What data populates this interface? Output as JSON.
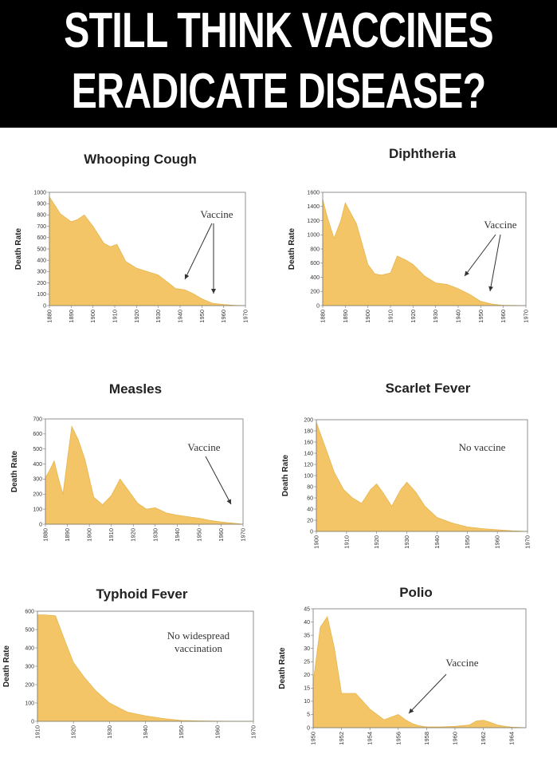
{
  "banner": {
    "line1": "STILL THINK VACCINES",
    "line2": "ERADICATE DISEASE?"
  },
  "colors": {
    "fill": "#F3C566",
    "stroke": "#E6B54E",
    "banner_bg": "#000000",
    "banner_text": "#FFFFFF"
  },
  "chart_data": [
    {
      "type": "area",
      "title": "Whooping Cough",
      "ylabel": "Death Rate",
      "ylim": [
        0,
        1000
      ],
      "yticks": [
        0,
        100,
        200,
        300,
        400,
        500,
        600,
        700,
        800,
        900,
        1000
      ],
      "xlim": [
        1880,
        1970
      ],
      "xticks": [
        "1880",
        "1890",
        "1900",
        "1910",
        "1920",
        "1930",
        "1940",
        "1950",
        "1960",
        "1970"
      ],
      "x": [
        1880,
        1885,
        1890,
        1893,
        1896,
        1900,
        1905,
        1908,
        1911,
        1915,
        1920,
        1925,
        1930,
        1934,
        1938,
        1942,
        1946,
        1950,
        1955,
        1960,
        1965,
        1970
      ],
      "y": [
        960,
        810,
        740,
        760,
        800,
        700,
        550,
        520,
        540,
        390,
        330,
        300,
        270,
        210,
        150,
        140,
        105,
        60,
        20,
        10,
        3,
        0
      ],
      "annotation": "Vaccine"
    },
    {
      "type": "area",
      "title": "Diphtheria",
      "ylabel": "Death Rate",
      "ylim": [
        0,
        1600
      ],
      "yticks": [
        0,
        200,
        400,
        600,
        800,
        1000,
        1200,
        1400,
        1600
      ],
      "xlim": [
        1880,
        1970
      ],
      "xticks": [
        "1880",
        "1890",
        "1900",
        "1910",
        "1920",
        "1930",
        "1940",
        "1950",
        "1960",
        "1970"
      ],
      "x": [
        1880,
        1882,
        1885,
        1888,
        1890,
        1895,
        1900,
        1903,
        1906,
        1910,
        1913,
        1917,
        1920,
        1925,
        1930,
        1935,
        1940,
        1945,
        1950,
        1955,
        1960,
        1965,
        1970
      ],
      "y": [
        1500,
        1250,
        950,
        1200,
        1450,
        1150,
        580,
        450,
        430,
        460,
        700,
        640,
        580,
        420,
        320,
        300,
        240,
        160,
        60,
        20,
        5,
        2,
        0
      ],
      "annotation": "Vaccine"
    },
    {
      "type": "area",
      "title": "Measles",
      "ylabel": "Death Rate",
      "ylim": [
        0,
        700
      ],
      "yticks": [
        0,
        100,
        200,
        300,
        400,
        500,
        600,
        700
      ],
      "xlim": [
        1880,
        1970
      ],
      "xticks": [
        "1880",
        "1890",
        "1900",
        "1910",
        "1920",
        "1930",
        "1940",
        "1950",
        "1960",
        "1970"
      ],
      "x": [
        1880,
        1882,
        1884,
        1886,
        1888,
        1890,
        1892,
        1895,
        1898,
        1902,
        1906,
        1910,
        1914,
        1918,
        1922,
        1926,
        1930,
        1935,
        1940,
        1945,
        1950,
        1955,
        1960,
        1965,
        1970
      ],
      "y": [
        310,
        360,
        420,
        300,
        200,
        430,
        650,
        560,
        430,
        180,
        130,
        190,
        300,
        220,
        140,
        100,
        110,
        75,
        60,
        50,
        40,
        25,
        15,
        8,
        0
      ],
      "annotation": "Vaccine"
    },
    {
      "type": "area",
      "title": "Scarlet Fever",
      "ylabel": "Death Rate",
      "ylim": [
        0,
        200
      ],
      "yticks": [
        0,
        20,
        40,
        60,
        80,
        100,
        120,
        140,
        160,
        180,
        200
      ],
      "xlim": [
        1900,
        1970
      ],
      "xticks": [
        "1900",
        "1910",
        "1920",
        "1930",
        "1940",
        "1950",
        "1960",
        "1970"
      ],
      "x": [
        1900,
        1903,
        1906,
        1909,
        1912,
        1915,
        1918,
        1920,
        1922,
        1925,
        1928,
        1930,
        1933,
        1936,
        1940,
        1945,
        1950,
        1955,
        1960,
        1965,
        1970
      ],
      "y": [
        195,
        150,
        105,
        75,
        60,
        50,
        75,
        85,
        70,
        45,
        75,
        88,
        70,
        45,
        25,
        15,
        8,
        5,
        3,
        1,
        0
      ],
      "annotation": "No vaccine"
    },
    {
      "type": "area",
      "title": "Typhoid Fever",
      "ylabel": "Death Rate",
      "ylim": [
        0,
        600
      ],
      "yticks": [
        0,
        100,
        200,
        300,
        400,
        500,
        600
      ],
      "xlim": [
        1910,
        1970
      ],
      "xticks": [
        "1910",
        "1920",
        "1930",
        "1940",
        "1950",
        "1960",
        "1970"
      ],
      "x": [
        1910,
        1912,
        1915,
        1918,
        1920,
        1923,
        1926,
        1930,
        1935,
        1940,
        1945,
        1950,
        1955,
        1960,
        1965,
        1970
      ],
      "y": [
        580,
        580,
        575,
        420,
        320,
        240,
        170,
        100,
        50,
        30,
        15,
        5,
        2,
        1,
        0,
        0
      ],
      "annotation": "No widespread vaccination"
    },
    {
      "type": "area",
      "title": "Polio",
      "ylabel": "Death Rate",
      "ylim": [
        0,
        45
      ],
      "yticks": [
        0,
        5,
        10,
        15,
        20,
        25,
        30,
        35,
        40,
        45
      ],
      "xlim": [
        1950,
        1965
      ],
      "xticks": [
        "1950",
        "1952",
        "1954",
        "1956",
        "1958",
        "1960",
        "1962",
        "1964"
      ],
      "x": [
        1950,
        1950.5,
        1951,
        1951.5,
        1952,
        1952.5,
        1953,
        1953.5,
        1954,
        1954.5,
        1955,
        1955.5,
        1956,
        1956.5,
        1957,
        1957.5,
        1958,
        1959,
        1960,
        1961,
        1961.5,
        1962,
        1962.5,
        1963,
        1963.5,
        1964,
        1965
      ],
      "y": [
        17,
        38,
        42,
        30,
        13,
        13,
        13,
        10,
        7,
        5,
        3,
        4,
        5,
        3,
        1.5,
        0.7,
        0.3,
        0.3,
        0.5,
        1,
        2.5,
        2.8,
        2,
        1,
        0.5,
        0.2,
        0
      ],
      "annotation": "Vaccine"
    }
  ]
}
